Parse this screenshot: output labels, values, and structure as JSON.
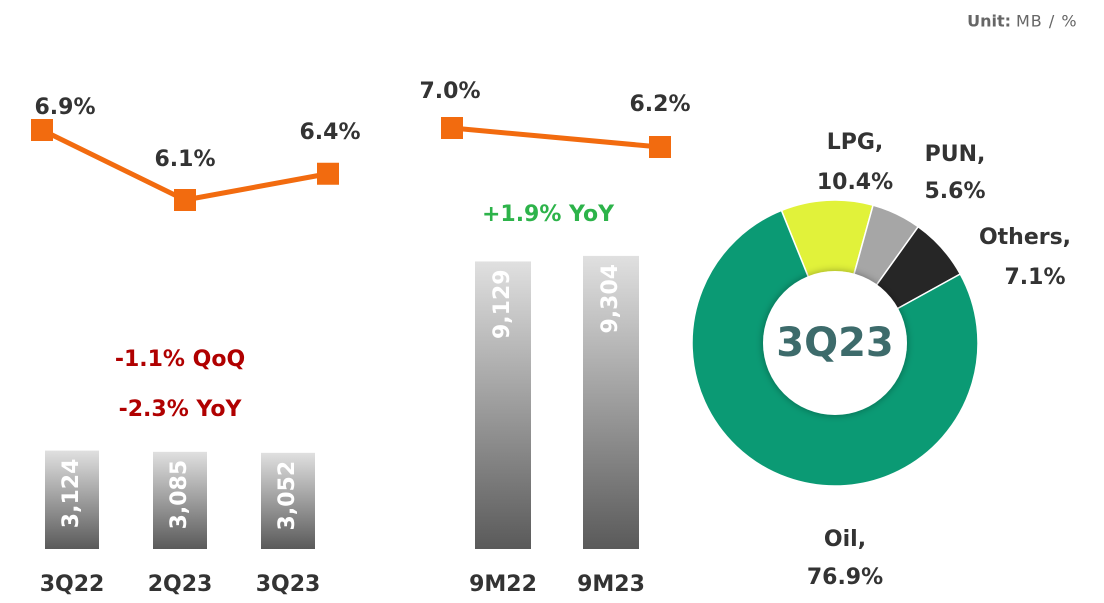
{
  "header": {
    "unit_label": "Unit:",
    "unit": "MB / %"
  },
  "chart_data": [
    {
      "type": "bar",
      "categories": [
        "3Q22",
        "2Q23",
        "3Q23"
      ],
      "series": [
        {
          "type": "bar",
          "color": "#595959",
          "values": [
            3124,
            3085,
            3052
          ],
          "value_labels": [
            "3,124",
            "3,085",
            "3,052"
          ]
        },
        {
          "type": "line",
          "color": "#f26b0f",
          "values": [
            6.9,
            6.1,
            6.4
          ],
          "value_labels": [
            "6.9%",
            "6.1%",
            "6.4%"
          ]
        }
      ],
      "annotations": [
        {
          "text": "-1.1% QoQ",
          "color": "#b00000"
        },
        {
          "text": "-2.3% YoY",
          "color": "#b00000"
        }
      ]
    },
    {
      "type": "bar",
      "categories": [
        "9M22",
        "9M23"
      ],
      "series": [
        {
          "type": "bar",
          "color": "#595959",
          "values": [
            9129,
            9304
          ],
          "value_labels": [
            "9,129",
            "9,304"
          ]
        },
        {
          "type": "line",
          "color": "#f26b0f",
          "values": [
            7.0,
            6.2
          ],
          "value_labels": [
            "7.0%",
            "6.2%"
          ]
        }
      ],
      "annotations": [
        {
          "text": "+1.9% YoY",
          "color": "#2db34a"
        }
      ]
    },
    {
      "type": "pie",
      "center_label": "3Q23",
      "categories": [
        "LPG,",
        "PUN,",
        "Others,",
        "Oil,"
      ],
      "values": [
        10.4,
        5.6,
        7.1,
        76.9
      ],
      "value_labels": [
        "10.4%",
        "5.6%",
        "7.1%",
        "76.9%"
      ],
      "colors": [
        "#e1f23a",
        "#a6a6a6",
        "#262626",
        "#0b9a74"
      ]
    }
  ]
}
